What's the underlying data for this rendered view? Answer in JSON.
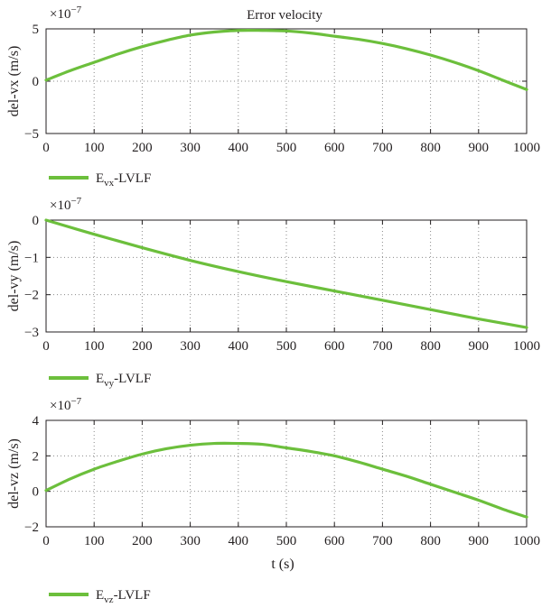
{
  "colors": {
    "line": "#6cbf3c",
    "axis": "#231f20",
    "grid": "#8a8a8a"
  },
  "chart_data": [
    {
      "type": "line",
      "title": "Error velocity",
      "ylabel": "del-vx (m/s)",
      "xlabel": "",
      "multiplier": "×10",
      "multiplier_exp": "−7",
      "xlim": [
        0,
        1000
      ],
      "ylim": [
        -5,
        5
      ],
      "xticks": [
        "0",
        "100",
        "200",
        "300",
        "400",
        "500",
        "600",
        "700",
        "800",
        "900",
        "1000"
      ],
      "yticks": [
        "5",
        "0",
        "−5"
      ],
      "grid": true,
      "legend": {
        "main": "E",
        "sub": "vx",
        "suffix": "-LVLF",
        "placement": "below"
      },
      "series": [
        {
          "name": "Evx-LVLF",
          "x": [
            0,
            50,
            100,
            150,
            200,
            250,
            300,
            350,
            400,
            450,
            500,
            550,
            600,
            650,
            700,
            750,
            800,
            850,
            900,
            950,
            1000
          ],
          "y": [
            0.1,
            1.0,
            1.8,
            2.6,
            3.3,
            3.9,
            4.4,
            4.7,
            4.85,
            4.85,
            4.8,
            4.6,
            4.3,
            4.0,
            3.6,
            3.1,
            2.5,
            1.8,
            1.0,
            0.1,
            -0.8
          ]
        }
      ]
    },
    {
      "type": "line",
      "title": "",
      "ylabel": "del-vy (m/s)",
      "xlabel": "",
      "multiplier": "×10",
      "multiplier_exp": "−7",
      "xlim": [
        0,
        1000
      ],
      "ylim": [
        -3,
        0
      ],
      "xticks": [
        "0",
        "100",
        "200",
        "300",
        "400",
        "500",
        "600",
        "700",
        "800",
        "900",
        "1000"
      ],
      "yticks": [
        "0",
        "−1",
        "−2",
        "−3"
      ],
      "grid": true,
      "legend": {
        "main": "E",
        "sub": "vy",
        "suffix": "-LVLF",
        "placement": "below"
      },
      "series": [
        {
          "name": "Evy-LVLF",
          "x": [
            0,
            100,
            200,
            300,
            400,
            500,
            600,
            700,
            800,
            900,
            1000
          ],
          "y": [
            0,
            -0.38,
            -0.74,
            -1.08,
            -1.38,
            -1.65,
            -1.9,
            -2.15,
            -2.4,
            -2.65,
            -2.88
          ]
        }
      ]
    },
    {
      "type": "line",
      "title": "",
      "ylabel": "del-vz (m/s)",
      "xlabel": "t (s)",
      "multiplier": "×10",
      "multiplier_exp": "−7",
      "xlim": [
        0,
        1000
      ],
      "ylim": [
        -2,
        4
      ],
      "xticks": [
        "0",
        "100",
        "200",
        "300",
        "400",
        "500",
        "600",
        "700",
        "800",
        "900",
        "1000"
      ],
      "yticks": [
        "4",
        "2",
        "0",
        "−2"
      ],
      "grid": true,
      "legend": {
        "main": "E",
        "sub": "vz",
        "suffix": "-LVLF",
        "placement": "below"
      },
      "series": [
        {
          "name": "Evz-LVLF",
          "x": [
            0,
            50,
            100,
            150,
            200,
            250,
            300,
            350,
            400,
            450,
            500,
            550,
            600,
            650,
            700,
            750,
            800,
            850,
            900,
            950,
            1000
          ],
          "y": [
            0.05,
            0.7,
            1.25,
            1.7,
            2.1,
            2.4,
            2.6,
            2.7,
            2.7,
            2.65,
            2.45,
            2.25,
            2.0,
            1.65,
            1.25,
            0.85,
            0.4,
            -0.05,
            -0.5,
            -1.0,
            -1.45
          ]
        }
      ]
    }
  ]
}
